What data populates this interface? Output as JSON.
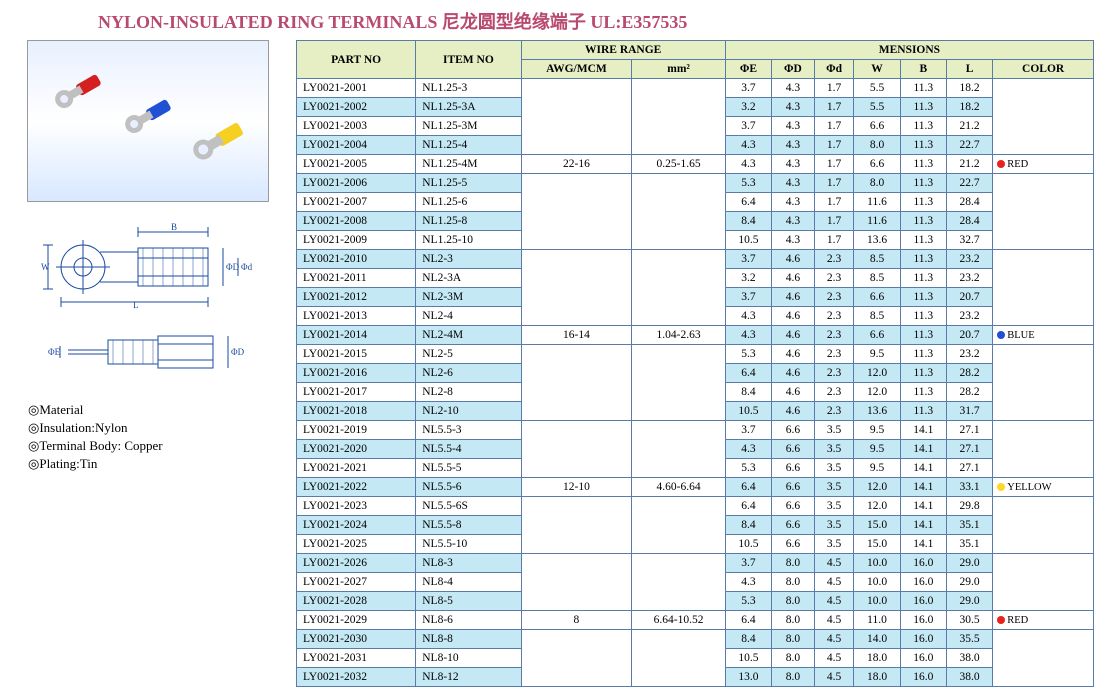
{
  "title": "NYLON-INSULATED RING TERMINALS  尼龙圆型绝缘端子  UL:E357535",
  "material": {
    "l1": "◎Material",
    "l2": "◎Insulation:Nylon",
    "l3": "◎Terminal Body: Copper",
    "l4": "◎Plating:Tin"
  },
  "headers": {
    "partno": "PART NO",
    "itemno": "ITEM NO",
    "wirerange": "WIRE RANGE",
    "mensions": "MENSIONS",
    "awg": "AWG/MCM",
    "mm2": "mm²",
    "e": "ΦE",
    "d": "ΦD",
    "dd": "Φd",
    "w": "W",
    "b": "B",
    "l": "L",
    "color": "COLOR"
  },
  "groups": [
    {
      "awg": "22-16",
      "mm2": "0.25-1.65",
      "color": "RED",
      "dot": "dot-red",
      "rows": [
        {
          "pn": "LY0021-2001",
          "it": "NL1.25-3",
          "e": "3.7",
          "d": "4.3",
          "dd": "1.7",
          "w": "5.5",
          "b": "11.3",
          "l": "18.2"
        },
        {
          "pn": "LY0021-2002",
          "it": "NL1.25-3A",
          "e": "3.2",
          "d": "4.3",
          "dd": "1.7",
          "w": "5.5",
          "b": "11.3",
          "l": "18.2"
        },
        {
          "pn": "LY0021-2003",
          "it": "NL1.25-3M",
          "e": "3.7",
          "d": "4.3",
          "dd": "1.7",
          "w": "6.6",
          "b": "11.3",
          "l": "21.2"
        },
        {
          "pn": "LY0021-2004",
          "it": "NL1.25-4",
          "e": "4.3",
          "d": "4.3",
          "dd": "1.7",
          "w": "8.0",
          "b": "11.3",
          "l": "22.7"
        },
        {
          "pn": "LY0021-2005",
          "it": "NL1.25-4M",
          "e": "4.3",
          "d": "4.3",
          "dd": "1.7",
          "w": "6.6",
          "b": "11.3",
          "l": "21.2"
        },
        {
          "pn": "LY0021-2006",
          "it": "NL1.25-5",
          "e": "5.3",
          "d": "4.3",
          "dd": "1.7",
          "w": "8.0",
          "b": "11.3",
          "l": "22.7"
        },
        {
          "pn": "LY0021-2007",
          "it": "NL1.25-6",
          "e": "6.4",
          "d": "4.3",
          "dd": "1.7",
          "w": "11.6",
          "b": "11.3",
          "l": "28.4"
        },
        {
          "pn": "LY0021-2008",
          "it": "NL1.25-8",
          "e": "8.4",
          "d": "4.3",
          "dd": "1.7",
          "w": "11.6",
          "b": "11.3",
          "l": "28.4"
        },
        {
          "pn": "LY0021-2009",
          "it": "NL1.25-10",
          "e": "10.5",
          "d": "4.3",
          "dd": "1.7",
          "w": "13.6",
          "b": "11.3",
          "l": "32.7"
        }
      ]
    },
    {
      "awg": "16-14",
      "mm2": "1.04-2.63",
      "color": "BLUE",
      "dot": "dot-blue",
      "rows": [
        {
          "pn": "LY0021-2010",
          "it": "NL2-3",
          "e": "3.7",
          "d": "4.6",
          "dd": "2.3",
          "w": "8.5",
          "b": "11.3",
          "l": "23.2"
        },
        {
          "pn": "LY0021-2011",
          "it": "NL2-3A",
          "e": "3.2",
          "d": "4.6",
          "dd": "2.3",
          "w": "8.5",
          "b": "11.3",
          "l": "23.2"
        },
        {
          "pn": "LY0021-2012",
          "it": "NL2-3M",
          "e": "3.7",
          "d": "4.6",
          "dd": "2.3",
          "w": "6.6",
          "b": "11.3",
          "l": "20.7"
        },
        {
          "pn": "LY0021-2013",
          "it": "NL2-4",
          "e": "4.3",
          "d": "4.6",
          "dd": "2.3",
          "w": "8.5",
          "b": "11.3",
          "l": "23.2"
        },
        {
          "pn": "LY0021-2014",
          "it": "NL2-4M",
          "e": "4.3",
          "d": "4.6",
          "dd": "2.3",
          "w": "6.6",
          "b": "11.3",
          "l": "20.7"
        },
        {
          "pn": "LY0021-2015",
          "it": "NL2-5",
          "e": "5.3",
          "d": "4.6",
          "dd": "2.3",
          "w": "9.5",
          "b": "11.3",
          "l": "23.2"
        },
        {
          "pn": "LY0021-2016",
          "it": "NL2-6",
          "e": "6.4",
          "d": "4.6",
          "dd": "2.3",
          "w": "12.0",
          "b": "11.3",
          "l": "28.2"
        },
        {
          "pn": "LY0021-2017",
          "it": "NL2-8",
          "e": "8.4",
          "d": "4.6",
          "dd": "2.3",
          "w": "12.0",
          "b": "11.3",
          "l": "28.2"
        },
        {
          "pn": "LY0021-2018",
          "it": "NL2-10",
          "e": "10.5",
          "d": "4.6",
          "dd": "2.3",
          "w": "13.6",
          "b": "11.3",
          "l": "31.7"
        }
      ]
    },
    {
      "awg": "12-10",
      "mm2": "4.60-6.64",
      "color": "YELLOW",
      "dot": "dot-yellow",
      "rows": [
        {
          "pn": "LY0021-2019",
          "it": "NL5.5-3",
          "e": "3.7",
          "d": "6.6",
          "dd": "3.5",
          "w": "9.5",
          "b": "14.1",
          "l": "27.1"
        },
        {
          "pn": "LY0021-2020",
          "it": "NL5.5-4",
          "e": "4.3",
          "d": "6.6",
          "dd": "3.5",
          "w": "9.5",
          "b": "14.1",
          "l": "27.1"
        },
        {
          "pn": "LY0021-2021",
          "it": "NL5.5-5",
          "e": "5.3",
          "d": "6.6",
          "dd": "3.5",
          "w": "9.5",
          "b": "14.1",
          "l": "27.1"
        },
        {
          "pn": "LY0021-2022",
          "it": "NL5.5-6",
          "e": "6.4",
          "d": "6.6",
          "dd": "3.5",
          "w": "12.0",
          "b": "14.1",
          "l": "33.1"
        },
        {
          "pn": "LY0021-2023",
          "it": "NL5.5-6S",
          "e": "6.4",
          "d": "6.6",
          "dd": "3.5",
          "w": "12.0",
          "b": "14.1",
          "l": "29.8"
        },
        {
          "pn": "LY0021-2024",
          "it": "NL5.5-8",
          "e": "8.4",
          "d": "6.6",
          "dd": "3.5",
          "w": "15.0",
          "b": "14.1",
          "l": "35.1"
        },
        {
          "pn": "LY0021-2025",
          "it": "NL5.5-10",
          "e": "10.5",
          "d": "6.6",
          "dd": "3.5",
          "w": "15.0",
          "b": "14.1",
          "l": "35.1"
        }
      ]
    },
    {
      "awg": "8",
      "mm2": "6.64-10.52",
      "color": "RED",
      "dot": "dot-red",
      "rows": [
        {
          "pn": "LY0021-2026",
          "it": "NL8-3",
          "e": "3.7",
          "d": "8.0",
          "dd": "4.5",
          "w": "10.0",
          "b": "16.0",
          "l": "29.0"
        },
        {
          "pn": "LY0021-2027",
          "it": "NL8-4",
          "e": "4.3",
          "d": "8.0",
          "dd": "4.5",
          "w": "10.0",
          "b": "16.0",
          "l": "29.0"
        },
        {
          "pn": "LY0021-2028",
          "it": "NL8-5",
          "e": "5.3",
          "d": "8.0",
          "dd": "4.5",
          "w": "10.0",
          "b": "16.0",
          "l": "29.0"
        },
        {
          "pn": "LY0021-2029",
          "it": "NL8-6",
          "e": "6.4",
          "d": "8.0",
          "dd": "4.5",
          "w": "11.0",
          "b": "16.0",
          "l": "30.5"
        },
        {
          "pn": "LY0021-2030",
          "it": "NL8-8",
          "e": "8.4",
          "d": "8.0",
          "dd": "4.5",
          "w": "14.0",
          "b": "16.0",
          "l": "35.5"
        },
        {
          "pn": "LY0021-2031",
          "it": "NL8-10",
          "e": "10.5",
          "d": "8.0",
          "dd": "4.5",
          "w": "18.0",
          "b": "16.0",
          "l": "38.0"
        },
        {
          "pn": "LY0021-2032",
          "it": "NL8-12",
          "e": "13.0",
          "d": "8.0",
          "dd": "4.5",
          "w": "18.0",
          "b": "16.0",
          "l": "38.0"
        }
      ]
    }
  ],
  "altStart": 1,
  "colors": {
    "headerBg": "#e6eec4",
    "altRowBg": "#c5e8f5",
    "border": "#5a7aa8",
    "title": "#b94a6f"
  }
}
